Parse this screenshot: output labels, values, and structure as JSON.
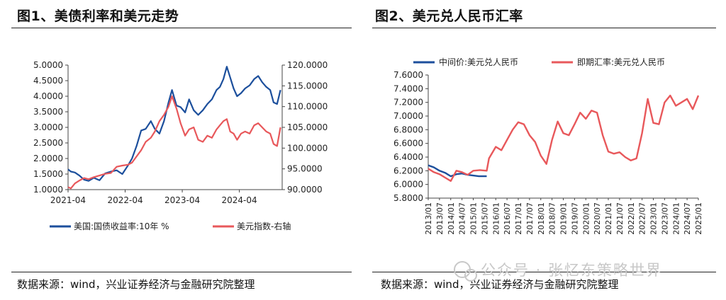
{
  "left": {
    "title": "图1、美债利率和美元走势",
    "source": "数据来源：wind，兴业证券经济与金融研究院整理"
  },
  "right": {
    "title": "图2、美元兑人民币汇率",
    "source": "数据来源：wind，兴业证券经济与金融研究院整理"
  },
  "watermark": "公众号 · 张忆东策略世界",
  "colors": {
    "blue": "#1c4f9c",
    "red": "#e8585b"
  },
  "chart_data": [
    {
      "type": "line",
      "x_tick_labels": [
        "2021-04",
        "2022-04",
        "2023-04",
        "2024-04"
      ],
      "y_left_ticks": [
        "1.0000",
        "1.5000",
        "2.0000",
        "2.5000",
        "3.0000",
        "3.5000",
        "4.0000",
        "4.5000",
        "5.0000"
      ],
      "y_right_ticks": [
        "90.0000",
        "95.0000",
        "100.0000",
        "105.0000",
        "110.0000",
        "115.0000",
        "120.0000"
      ],
      "ylim_left": [
        1.0,
        5.0
      ],
      "ylim_right": [
        90,
        120
      ],
      "xlim": [
        2021.0,
        2024.75
      ],
      "series": [
        {
          "name": "美国:国债收益率:10年  %",
          "axis": "left",
          "color": "#1c4f9c",
          "x": [
            2021.0,
            2021.05,
            2021.12,
            2021.2,
            2021.28,
            2021.36,
            2021.45,
            2021.55,
            2021.65,
            2021.75,
            2021.85,
            2021.95,
            2022.05,
            2022.12,
            2022.2,
            2022.28,
            2022.36,
            2022.45,
            2022.52,
            2022.6,
            2022.68,
            2022.76,
            2022.82,
            2022.9,
            2022.97,
            2023.05,
            2023.12,
            2023.2,
            2023.28,
            2023.36,
            2023.44,
            2023.52,
            2023.6,
            2023.66,
            2023.72,
            2023.78,
            2023.84,
            2023.9,
            2023.96,
            2024.03,
            2024.1,
            2024.18,
            2024.26,
            2024.33,
            2024.4,
            2024.47,
            2024.54,
            2024.6,
            2024.66,
            2024.72
          ],
          "y": [
            1.65,
            1.58,
            1.55,
            1.45,
            1.32,
            1.28,
            1.38,
            1.3,
            1.52,
            1.58,
            1.62,
            1.5,
            1.78,
            2.0,
            2.4,
            2.9,
            2.95,
            3.2,
            2.95,
            2.8,
            3.2,
            3.8,
            4.2,
            3.7,
            3.65,
            3.48,
            3.9,
            3.55,
            3.4,
            3.55,
            3.75,
            3.9,
            4.2,
            4.3,
            4.55,
            4.95,
            4.6,
            4.25,
            4.0,
            4.1,
            4.25,
            4.35,
            4.55,
            4.65,
            4.45,
            4.3,
            4.2,
            3.8,
            3.75,
            4.2
          ]
        },
        {
          "name": "美元指数-右轴",
          "axis": "right",
          "color": "#e8585b",
          "x": [
            2021.0,
            2021.05,
            2021.12,
            2021.2,
            2021.28,
            2021.36,
            2021.45,
            2021.55,
            2021.65,
            2021.75,
            2021.85,
            2021.95,
            2022.05,
            2022.12,
            2022.2,
            2022.28,
            2022.36,
            2022.45,
            2022.52,
            2022.6,
            2022.68,
            2022.76,
            2022.82,
            2022.9,
            2022.97,
            2023.05,
            2023.12,
            2023.2,
            2023.28,
            2023.36,
            2023.44,
            2023.52,
            2023.6,
            2023.66,
            2023.72,
            2023.78,
            2023.84,
            2023.9,
            2023.96,
            2024.03,
            2024.1,
            2024.18,
            2024.26,
            2024.33,
            2024.4,
            2024.47,
            2024.54,
            2024.6,
            2024.66,
            2024.72
          ],
          "y": [
            90.6,
            90.3,
            91.5,
            92.2,
            92.8,
            92.5,
            93.0,
            93.4,
            93.8,
            94.0,
            95.5,
            95.8,
            96.0,
            96.5,
            98.0,
            99.5,
            101.5,
            102.5,
            104.0,
            106.5,
            108.0,
            110.0,
            112.5,
            109.5,
            106.0,
            103.0,
            104.5,
            105.0,
            102.0,
            101.5,
            103.0,
            102.5,
            104.5,
            105.5,
            106.5,
            107.0,
            104.0,
            103.5,
            102.0,
            103.5,
            104.0,
            103.5,
            105.5,
            106.0,
            105.0,
            104.0,
            103.5,
            101.0,
            100.5,
            105.0
          ]
        }
      ]
    },
    {
      "type": "line",
      "x_tick_labels": [
        "2013/01",
        "2013/07",
        "2014/01",
        "2014/07",
        "2015/01",
        "2015/07",
        "2016/01",
        "2016/07",
        "2017/01",
        "2017/07",
        "2018/01",
        "2018/07",
        "2019/01",
        "2019/07",
        "2020/01",
        "2020/07",
        "2021/01",
        "2021/07",
        "2022/01",
        "2022/07",
        "2023/01",
        "2023/07",
        "2024/01",
        "2024/07",
        "2025/01"
      ],
      "y_ticks": [
        "5.8000",
        "6.0000",
        "6.2000",
        "6.4000",
        "6.6000",
        "6.8000",
        "7.0000",
        "7.2000",
        "7.4000",
        "7.6000"
      ],
      "ylim": [
        5.8,
        7.6
      ],
      "xlim": [
        2013.0,
        2025.0
      ],
      "series": [
        {
          "name": "中间价:美元兑人民币",
          "color": "#1c4f9c",
          "x": [
            2013.0,
            2013.25,
            2013.5,
            2013.75,
            2014.0,
            2014.25,
            2014.5,
            2014.75,
            2015.0,
            2015.25,
            2015.5,
            2015.6
          ],
          "y": [
            6.28,
            6.25,
            6.2,
            6.17,
            6.12,
            6.15,
            6.16,
            6.14,
            6.13,
            6.12,
            6.12,
            6.12
          ]
        },
        {
          "name": "即期汇率:美元兑人民币",
          "color": "#e8585b",
          "x": [
            2013.0,
            2013.25,
            2013.5,
            2013.75,
            2014.0,
            2014.25,
            2014.5,
            2014.75,
            2015.0,
            2015.3,
            2015.6,
            2015.7,
            2016.0,
            2016.25,
            2016.5,
            2016.75,
            2017.0,
            2017.25,
            2017.5,
            2017.75,
            2018.0,
            2018.25,
            2018.5,
            2018.75,
            2019.0,
            2019.25,
            2019.5,
            2019.75,
            2020.0,
            2020.25,
            2020.5,
            2020.75,
            2021.0,
            2021.25,
            2021.5,
            2021.75,
            2022.0,
            2022.25,
            2022.5,
            2022.75,
            2023.0,
            2023.25,
            2023.5,
            2023.75,
            2024.0,
            2024.25,
            2024.5,
            2024.75,
            2025.0
          ],
          "y": [
            6.23,
            6.18,
            6.15,
            6.1,
            6.05,
            6.2,
            6.18,
            6.14,
            6.2,
            6.21,
            6.2,
            6.38,
            6.55,
            6.5,
            6.65,
            6.8,
            6.91,
            6.88,
            6.72,
            6.62,
            6.42,
            6.3,
            6.65,
            6.92,
            6.75,
            6.72,
            6.88,
            7.05,
            6.96,
            7.08,
            7.05,
            6.72,
            6.48,
            6.45,
            6.47,
            6.4,
            6.35,
            6.38,
            6.75,
            7.25,
            6.9,
            6.88,
            7.2,
            7.3,
            7.15,
            7.2,
            7.25,
            7.1,
            7.3
          ]
        }
      ]
    }
  ]
}
